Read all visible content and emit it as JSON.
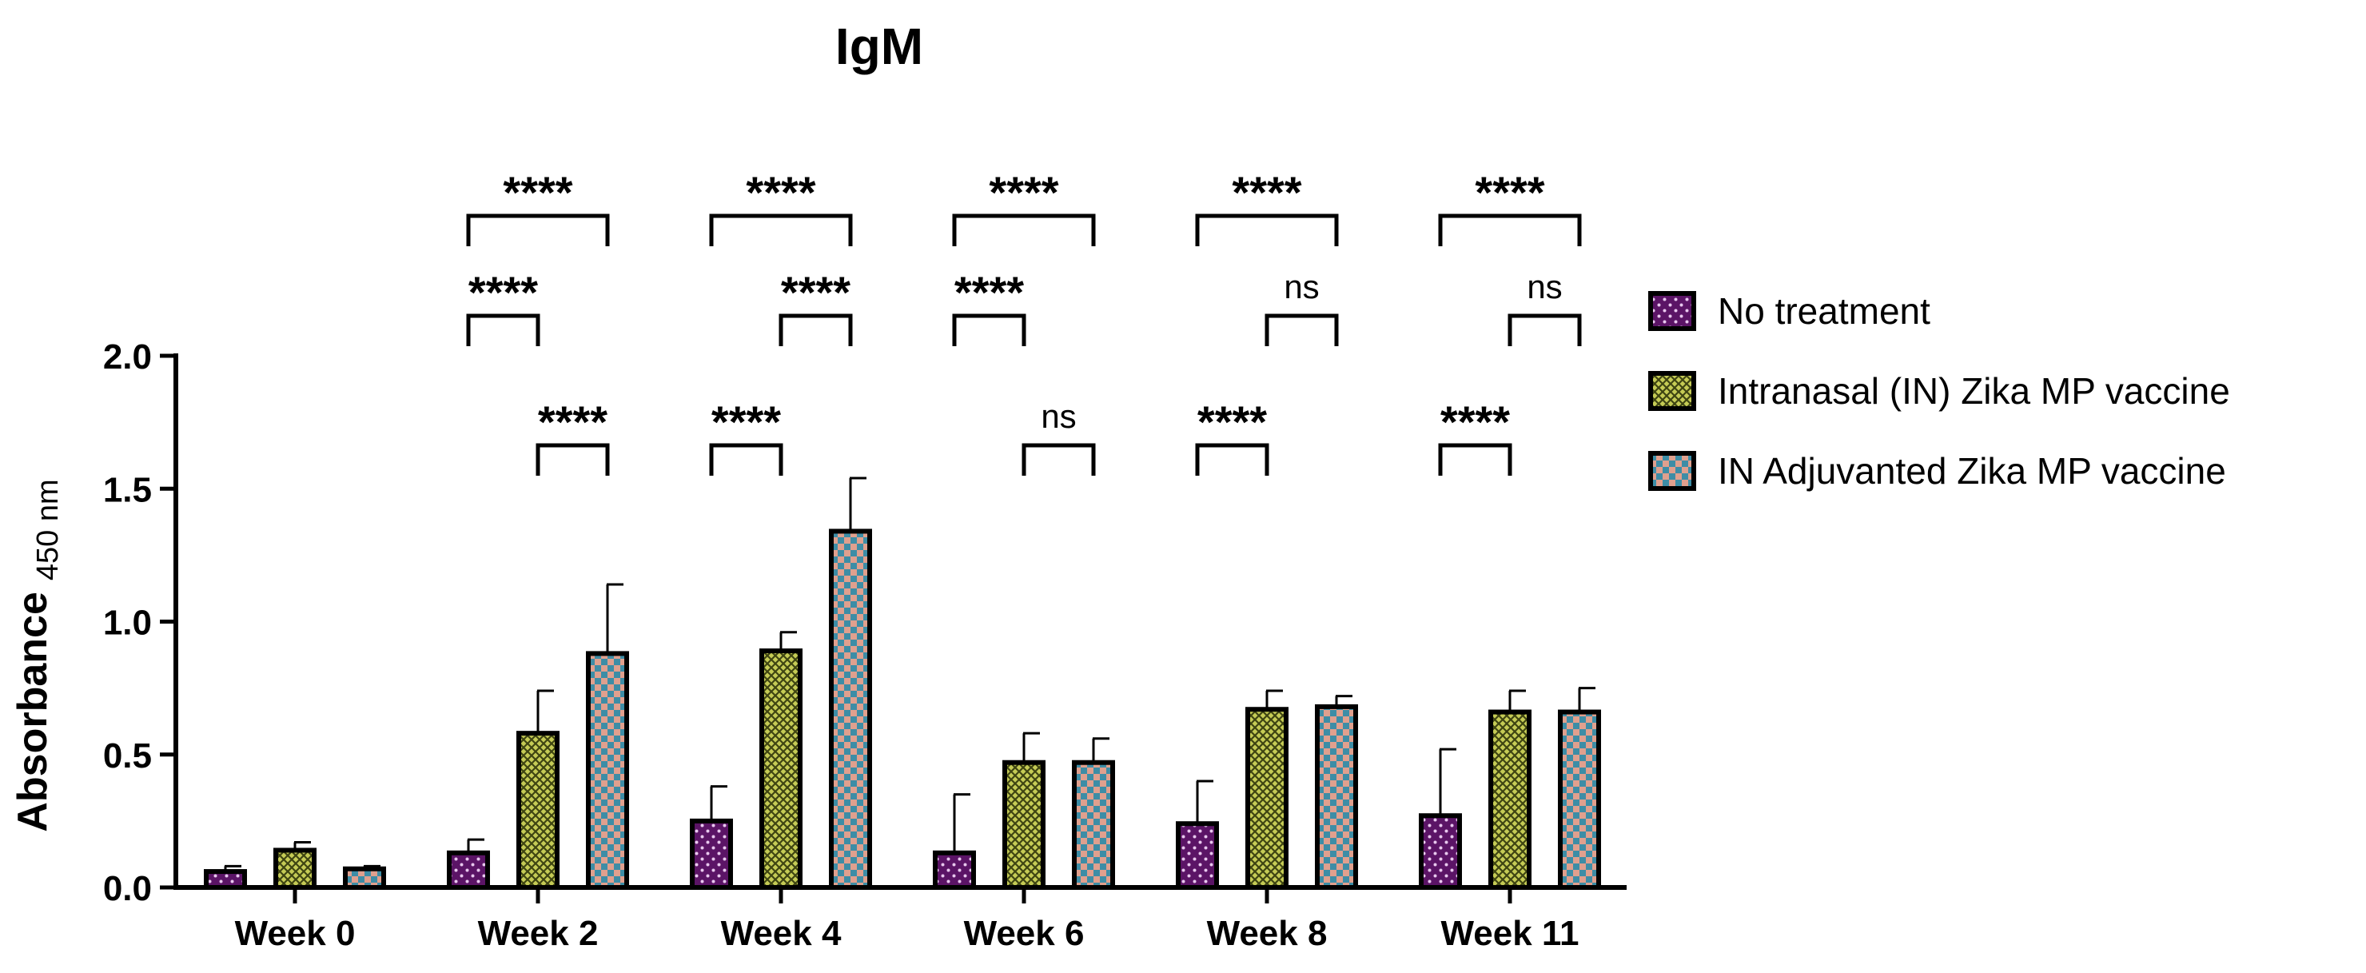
{
  "chart_data": {
    "type": "bar",
    "title": "IgM",
    "ylabel": "Absorbance",
    "ylabel_subscript": "450 nm",
    "xlabel": "",
    "ylim": [
      0,
      2.0
    ],
    "yticks": [
      "0.0",
      "0.5",
      "1.0",
      "1.5",
      "2.0"
    ],
    "categories": [
      "Week 0",
      "Week 2",
      "Week 4",
      "Week 6",
      "Week 8",
      "Week 11"
    ],
    "series": [
      {
        "name": "No treatment",
        "color": "#5b1466",
        "pattern": "dots",
        "values": [
          0.06,
          0.13,
          0.25,
          0.13,
          0.24,
          0.27
        ],
        "errors": [
          0.02,
          0.05,
          0.13,
          0.22,
          0.16,
          0.25
        ]
      },
      {
        "name": "Intranasal (IN) Zika MP vaccine",
        "color": "#a8b03a",
        "pattern": "crosshatch",
        "values": [
          0.14,
          0.58,
          0.89,
          0.47,
          0.67,
          0.66
        ],
        "errors": [
          0.03,
          0.16,
          0.07,
          0.11,
          0.07,
          0.08
        ]
      },
      {
        "name": "IN Adjuvanted Zika MP vaccine",
        "color": "#3d8da6",
        "pattern": "checker",
        "values": [
          0.07,
          0.88,
          1.34,
          0.47,
          0.68,
          0.66
        ],
        "errors": [
          0.01,
          0.26,
          0.2,
          0.09,
          0.04,
          0.09
        ]
      }
    ],
    "significance": [
      {
        "category": "Week 2",
        "pair": [
          0,
          2
        ],
        "level": 3,
        "label": "****"
      },
      {
        "category": "Week 2",
        "pair": [
          0,
          1
        ],
        "level": 2,
        "label": "****"
      },
      {
        "category": "Week 2",
        "pair": [
          1,
          2
        ],
        "level": 1,
        "label": "****"
      },
      {
        "category": "Week 4",
        "pair": [
          0,
          2
        ],
        "level": 3,
        "label": "****"
      },
      {
        "category": "Week 4",
        "pair": [
          1,
          2
        ],
        "level": 2,
        "label": "****"
      },
      {
        "category": "Week 4",
        "pair": [
          0,
          1
        ],
        "level": 1,
        "label": "****"
      },
      {
        "category": "Week 6",
        "pair": [
          0,
          2
        ],
        "level": 3,
        "label": "****"
      },
      {
        "category": "Week 6",
        "pair": [
          0,
          1
        ],
        "level": 2,
        "label": "****"
      },
      {
        "category": "Week 6",
        "pair": [
          1,
          2
        ],
        "level": 1,
        "label": "ns"
      },
      {
        "category": "Week 8",
        "pair": [
          0,
          2
        ],
        "level": 3,
        "label": "****"
      },
      {
        "category": "Week 8",
        "pair": [
          1,
          2
        ],
        "level": 2,
        "label": "ns"
      },
      {
        "category": "Week 8",
        "pair": [
          0,
          1
        ],
        "level": 1,
        "label": "****"
      },
      {
        "category": "Week 11",
        "pair": [
          0,
          2
        ],
        "level": 3,
        "label": "****"
      },
      {
        "category": "Week 11",
        "pair": [
          1,
          2
        ],
        "level": 2,
        "label": "ns"
      },
      {
        "category": "Week 11",
        "pair": [
          0,
          1
        ],
        "level": 1,
        "label": "****"
      }
    ],
    "legend_position": "right",
    "grid": false
  }
}
